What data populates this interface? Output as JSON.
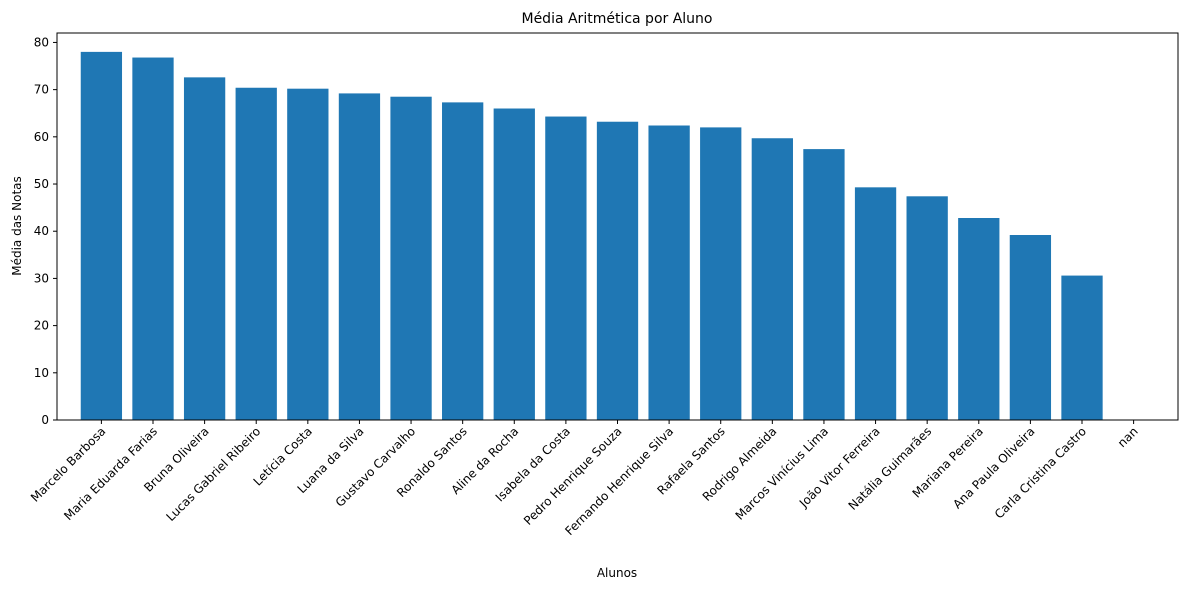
{
  "chart_data": {
    "type": "bar",
    "title": "Média Aritmética por Aluno",
    "xlabel": "Alunos",
    "ylabel": "Média das Notas",
    "categories": [
      "Marcelo Barbosa",
      "Maria Eduarda Farias",
      "Bruna Oliveira",
      "Lucas Gabriel Ribeiro",
      "Letícia Costa",
      "Luana da Silva",
      "Gustavo Carvalho",
      "Ronaldo Santos",
      "Aline da Rocha",
      "Isabela da Costa",
      "Pedro Henrique Souza",
      "Fernando Henrique Silva",
      "Rafaela Santos",
      "Rodrigo Almeida",
      "Marcos Vinícius Lima",
      "João Vitor Ferreira",
      "Natália Guimarães",
      "Mariana Pereira",
      "Ana Paula Oliveira",
      "Carla Cristina Castro",
      "nan"
    ],
    "values": [
      78.0,
      76.8,
      72.6,
      70.4,
      70.2,
      69.2,
      68.5,
      67.3,
      66.0,
      64.3,
      63.2,
      62.4,
      62.0,
      59.7,
      57.4,
      49.3,
      47.4,
      42.8,
      39.2,
      30.6,
      null
    ],
    "ylim": [
      0,
      82
    ],
    "yticks": [
      0,
      10,
      20,
      30,
      40,
      50,
      60,
      70,
      80
    ],
    "xtick_rotation": 45,
    "grid": false,
    "colors": {
      "bar": "#1f77b4",
      "axis": "#000000",
      "background": "#ffffff"
    }
  }
}
